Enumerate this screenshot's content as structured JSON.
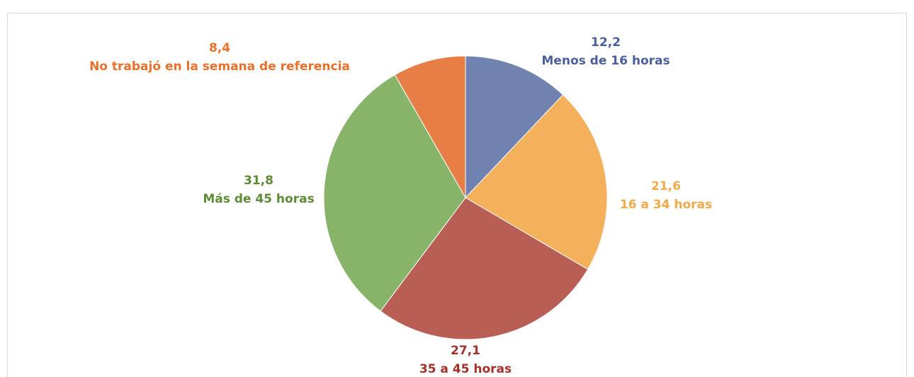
{
  "chart_data": {
    "type": "pie",
    "categories": [
      "Menos de 16 horas",
      "16 a 34 horas",
      "35 a 45 horas",
      "Más de 45 horas",
      "No trabajó en la semana de referencia"
    ],
    "values": [
      12.2,
      21.6,
      27.1,
      31.8,
      8.4
    ],
    "value_labels": [
      "12,2",
      "21,6",
      "27,1",
      "31,8",
      "8,4"
    ],
    "colors": [
      "#7083b0",
      "#f4b05a",
      "#b85e55",
      "#88b46a",
      "#e67e45"
    ],
    "label_colors": [
      "#4a5f9e",
      "#f2a94a",
      "#a3312b",
      "#5e8c36",
      "#e8702a"
    ]
  }
}
